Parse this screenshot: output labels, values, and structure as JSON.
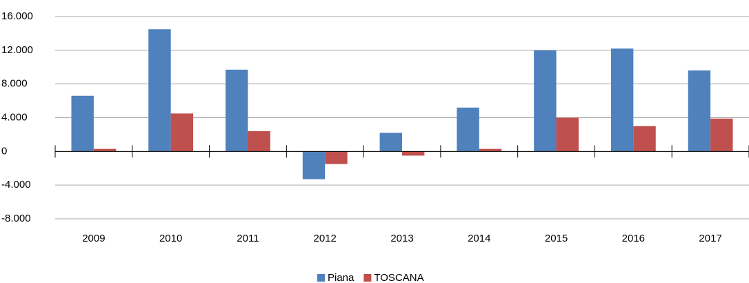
{
  "chart_data": {
    "type": "bar",
    "categories": [
      "2009",
      "2010",
      "2011",
      "2012",
      "2013",
      "2014",
      "2015",
      "2016",
      "2017"
    ],
    "series": [
      {
        "name": "Piana",
        "color": "#4f81bd",
        "values": [
          6600,
          14500,
          9700,
          -3300,
          2200,
          5200,
          12000,
          12200,
          9600
        ]
      },
      {
        "name": "TOSCANA",
        "color": "#c0504d",
        "values": [
          300,
          4500,
          2400,
          -1500,
          -500,
          300,
          4000,
          3000,
          3900
        ]
      }
    ],
    "ylim": [
      -8000,
      16000
    ],
    "yticks": [
      {
        "value": -8000,
        "label": "-8.000"
      },
      {
        "value": -4000,
        "label": "-4.000"
      },
      0,
      {
        "value": 4000,
        "label": "4.000"
      },
      {
        "value": 8000,
        "label": "8.000"
      },
      {
        "value": 12000,
        "label": "12.000"
      },
      {
        "value": 16000,
        "label": "16.000"
      }
    ],
    "grid": true,
    "legend": "bottom"
  }
}
